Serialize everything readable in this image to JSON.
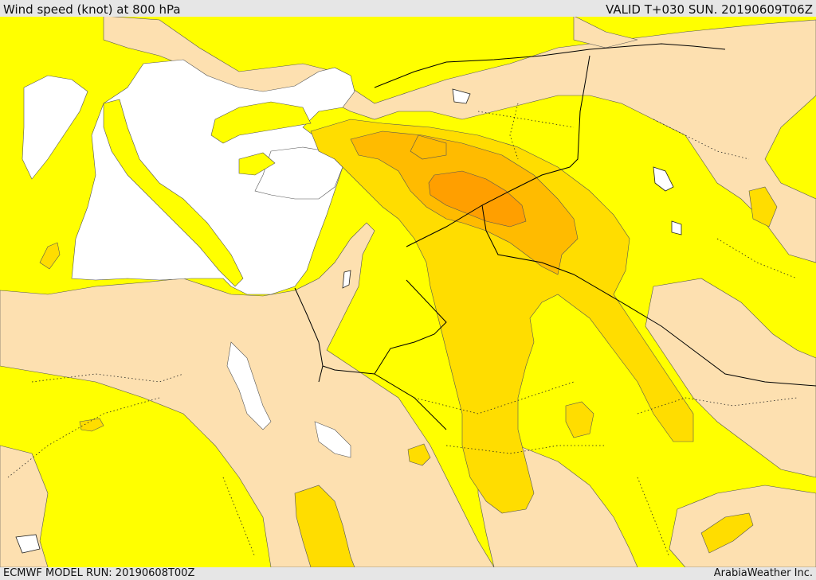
{
  "header": {
    "title": "Wind speed (knot) at 800 hPa",
    "valid": "VALID T+030 SUN. 20190609T06Z"
  },
  "footer": {
    "model_run": "ECMWF MODEL RUN: 20190608T00Z",
    "credit": "ArabiaWeather Inc."
  },
  "map": {
    "region": "Eastern Mediterranean, Levant, Arabian Peninsula",
    "fill_colors": {
      "white": "#ffffff",
      "beige": "#fde0b0",
      "yellow": "#ffff00",
      "gold": "#ffdd00",
      "amber": "#ffbb00",
      "orange": "#ff9f00"
    },
    "contour_color": "#555555",
    "border_color": "#000000"
  }
}
